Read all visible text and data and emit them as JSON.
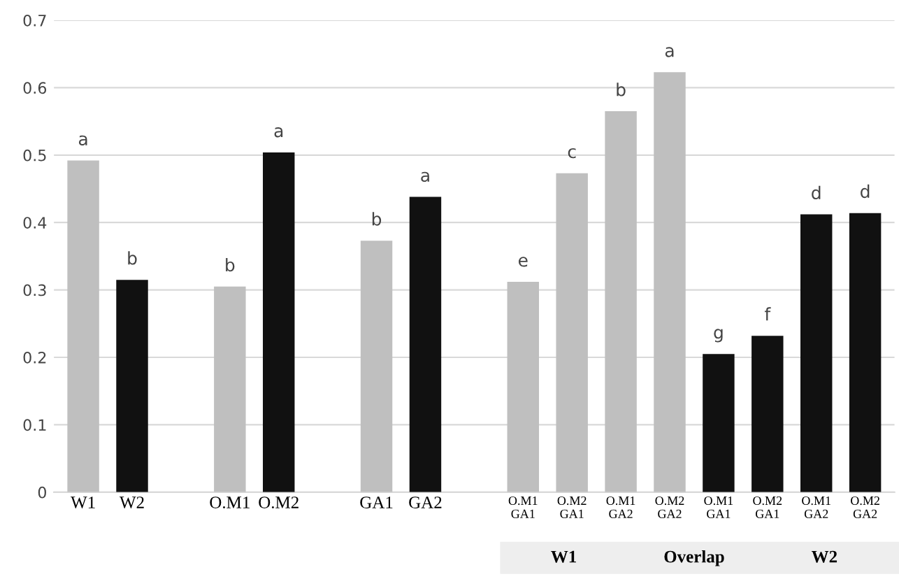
{
  "chart_data": {
    "type": "bar",
    "categories": [
      "W1",
      "W2",
      null,
      "O.M1",
      "O.M2",
      null,
      "GA1",
      "GA2",
      null,
      "O.M1\nGA1",
      "O.M2\nGA1",
      "O.M1\nGA2",
      "O.M2\nGA2",
      "O.M1\nGA1",
      "O.M2\nGA1",
      "O.M1\nGA2",
      "O.M2\nGA2"
    ],
    "values": [
      0.492,
      0.315,
      null,
      0.305,
      0.504,
      null,
      0.373,
      0.438,
      null,
      0.312,
      0.473,
      0.565,
      0.623,
      0.205,
      0.232,
      0.412,
      0.414
    ],
    "colors": [
      "#bfbfbf",
      "#111111",
      null,
      "#bfbfbf",
      "#111111",
      null,
      "#bfbfbf",
      "#111111",
      null,
      "#bfbfbf",
      "#bfbfbf",
      "#bfbfbf",
      "#bfbfbf",
      "#111111",
      "#111111",
      "#111111",
      "#111111"
    ],
    "value_labels": [
      "a",
      "b",
      null,
      "b",
      "a",
      null,
      "b",
      "a",
      null,
      "e",
      "c",
      "b",
      "a",
      "g",
      "f",
      "d",
      "d"
    ],
    "ylim": [
      0,
      0.7
    ],
    "yticks": [
      0,
      0.1,
      0.2,
      0.3,
      0.4,
      0.5,
      0.6,
      0.7
    ],
    "grid": "y",
    "annotations": [
      "W1",
      "Overlap",
      "W2"
    ]
  }
}
